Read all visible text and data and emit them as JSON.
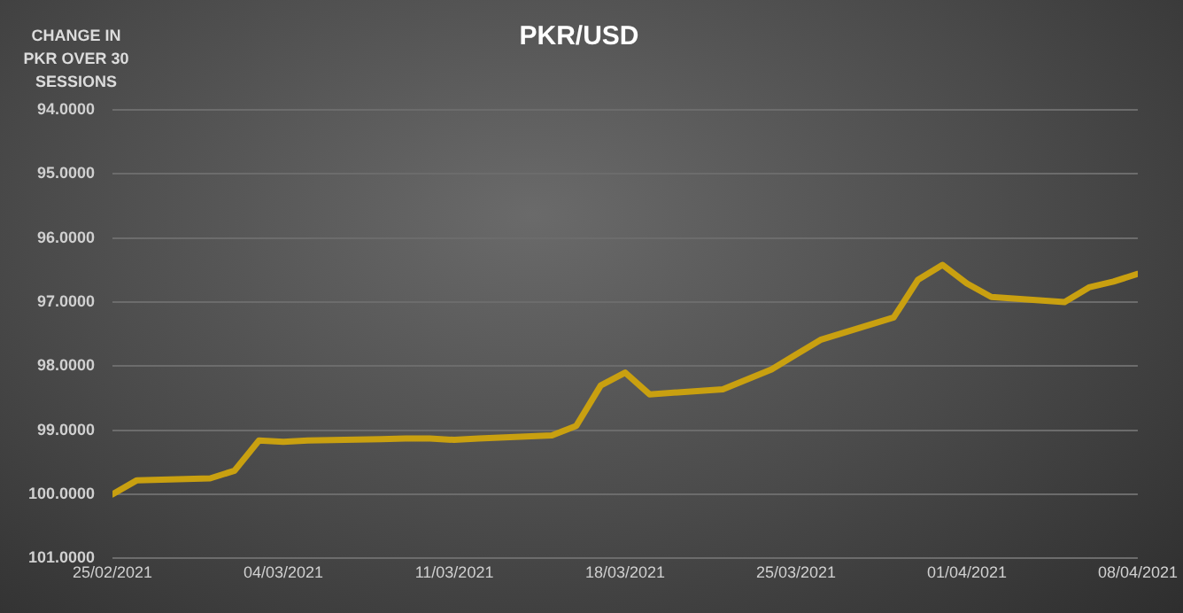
{
  "chart_data": {
    "type": "line",
    "title": "PKR/USD",
    "ylabel": "CHANGE IN PKR OVER 30 SESSIONS",
    "x": [
      "2021-02-25",
      "2021-02-26",
      "2021-03-01",
      "2021-03-02",
      "2021-03-03",
      "2021-03-04",
      "2021-03-05",
      "2021-03-08",
      "2021-03-09",
      "2021-03-10",
      "2021-03-11",
      "2021-03-12",
      "2021-03-15",
      "2021-03-16",
      "2021-03-17",
      "2021-03-18",
      "2021-03-19",
      "2021-03-22",
      "2021-03-24",
      "2021-03-25",
      "2021-03-26",
      "2021-03-29",
      "2021-03-30",
      "2021-03-31",
      "2021-04-01",
      "2021-04-02",
      "2021-04-05",
      "2021-04-06",
      "2021-04-07",
      "2021-04-08"
    ],
    "series": [
      {
        "color": "#c9a010",
        "values": [
          100.0,
          99.78,
          99.75,
          99.63,
          99.16,
          99.18,
          99.16,
          99.14,
          99.13,
          99.13,
          99.15,
          99.13,
          99.08,
          98.93,
          98.3,
          98.1,
          98.44,
          98.36,
          98.05,
          97.82,
          97.59,
          97.24,
          96.65,
          96.42,
          96.71,
          96.92,
          97.0,
          96.77,
          96.68,
          96.56
        ]
      }
    ],
    "xlim": [
      "2021-02-25",
      "2021-04-08"
    ],
    "xticks": [
      {
        "value": "2021-02-25",
        "label": "25/02/2021"
      },
      {
        "value": "2021-03-04",
        "label": "04/03/2021"
      },
      {
        "value": "2021-03-11",
        "label": "11/03/2021"
      },
      {
        "value": "2021-03-18",
        "label": "18/03/2021"
      },
      {
        "value": "2021-03-25",
        "label": "25/03/2021"
      },
      {
        "value": "2021-04-01",
        "label": "01/04/2021"
      },
      {
        "value": "2021-04-08",
        "label": "08/04/2021"
      }
    ],
    "ylim": [
      101,
      94
    ],
    "yticks": [
      {
        "value": 94,
        "label": "94.0000"
      },
      {
        "value": 95,
        "label": "95.0000"
      },
      {
        "value": 96,
        "label": "96.0000"
      },
      {
        "value": 97,
        "label": "97.0000"
      },
      {
        "value": 98,
        "label": "98.0000"
      },
      {
        "value": 99,
        "label": "99.0000"
      },
      {
        "value": 100,
        "label": "100.0000"
      },
      {
        "value": 101,
        "label": "101.0000"
      }
    ],
    "grid": "y",
    "legend": false,
    "marker": "none",
    "line_style": "solid"
  }
}
